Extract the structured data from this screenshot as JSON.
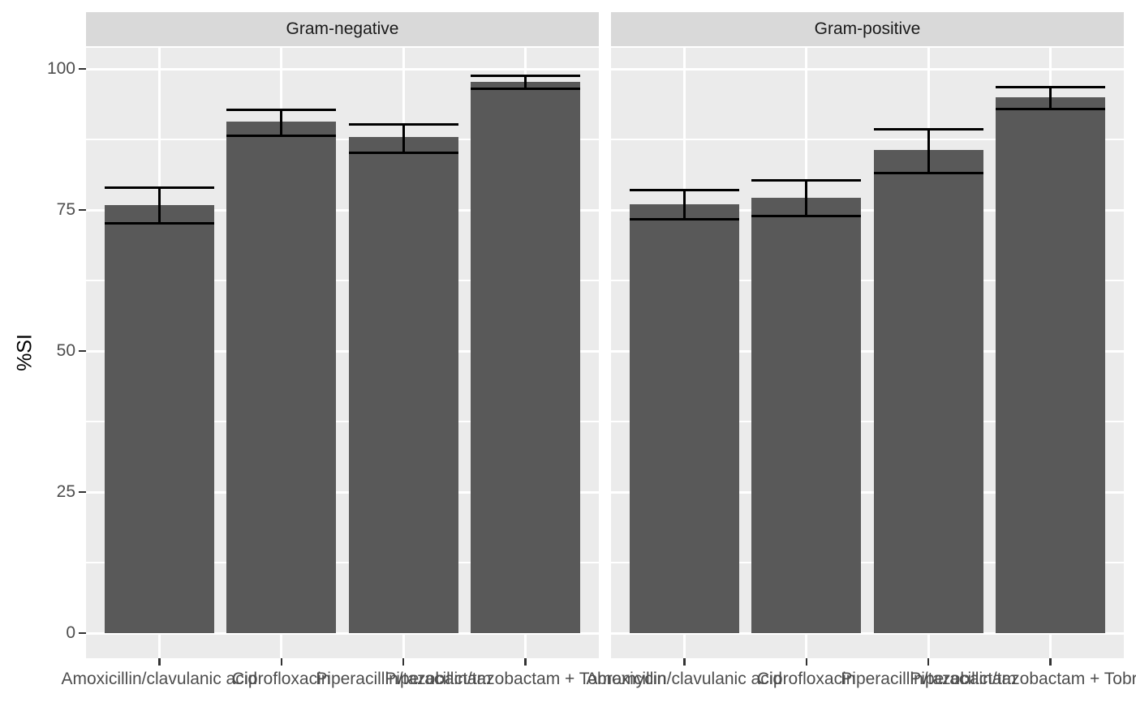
{
  "figure": {
    "colors": {
      "background": "#ffffff",
      "panel_bg": "#ebebeb",
      "strip_bg": "#d9d9d9",
      "strip_text": "#1a1a1a",
      "grid": "#ffffff",
      "bar": "#595959",
      "errorbar": "#000000",
      "tick_mark": "#333333",
      "axis_text": "#4d4d4d",
      "axis_title": "#000000"
    }
  },
  "chart_data": {
    "type": "bar",
    "title": "",
    "xlabel": "",
    "ylabel": "%SI",
    "ylim": [
      0,
      100
    ],
    "y_major_ticks": [
      0,
      25,
      50,
      75,
      100
    ],
    "y_minor_ticks": [
      12.5,
      37.5,
      62.5,
      87.5
    ],
    "grid": "major and minor horizontal, major vertical at categories",
    "legend_position": "none",
    "error_bars": true,
    "categories": [
      "Amoxicillin/clavulanic acid",
      "Ciprofloxacin",
      "Piperacillin/tazobactam",
      "Piperacillin/tazobactam + Tobramycin"
    ],
    "facets": [
      {
        "label": "Gram-negative",
        "values": [
          75.8,
          90.6,
          87.9,
          97.7
        ],
        "error_low": [
          72.6,
          88.2,
          85.2,
          96.5
        ],
        "error_high": [
          79.0,
          92.8,
          90.2,
          98.8
        ]
      },
      {
        "label": "Gram-positive",
        "values": [
          76.0,
          77.1,
          85.6,
          95.0
        ],
        "error_low": [
          73.3,
          73.9,
          81.6,
          92.9
        ],
        "error_high": [
          78.5,
          80.2,
          89.3,
          96.8
        ]
      }
    ]
  }
}
